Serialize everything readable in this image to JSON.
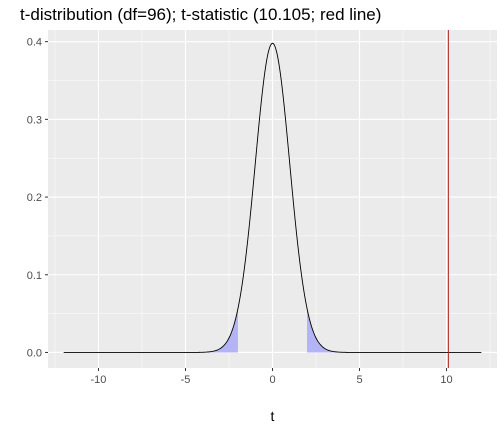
{
  "chart_data": {
    "type": "line",
    "title": "t-distribution (df=96); t-statistic (10.105; red line)",
    "xlabel": "t",
    "ylabel": "",
    "df": 96,
    "xlim": [
      -12.9,
      12.9
    ],
    "ylim": [
      -0.02,
      0.415
    ],
    "x_ticks": [
      -10,
      -5,
      0,
      5,
      10
    ],
    "x_tick_labels": [
      "-10",
      "-5",
      "0",
      "5",
      "10"
    ],
    "y_ticks": [
      0.0,
      0.1,
      0.2,
      0.3,
      0.4
    ],
    "y_tick_labels": [
      "0.0",
      "0.1",
      "0.2",
      "0.3",
      "0.4"
    ],
    "curve_range": [
      -12,
      12
    ],
    "shaded_regions": [
      [
        -12,
        -1.985
      ],
      [
        1.985,
        12
      ]
    ],
    "t_statistic": 10.105,
    "grid": true,
    "legend": "none",
    "colors": {
      "panel_background": "#ebebeb",
      "grid_major": "#ffffff",
      "curve": "#000000",
      "shade": "#b3b3f5",
      "statistic_line": "#b22222"
    }
  }
}
